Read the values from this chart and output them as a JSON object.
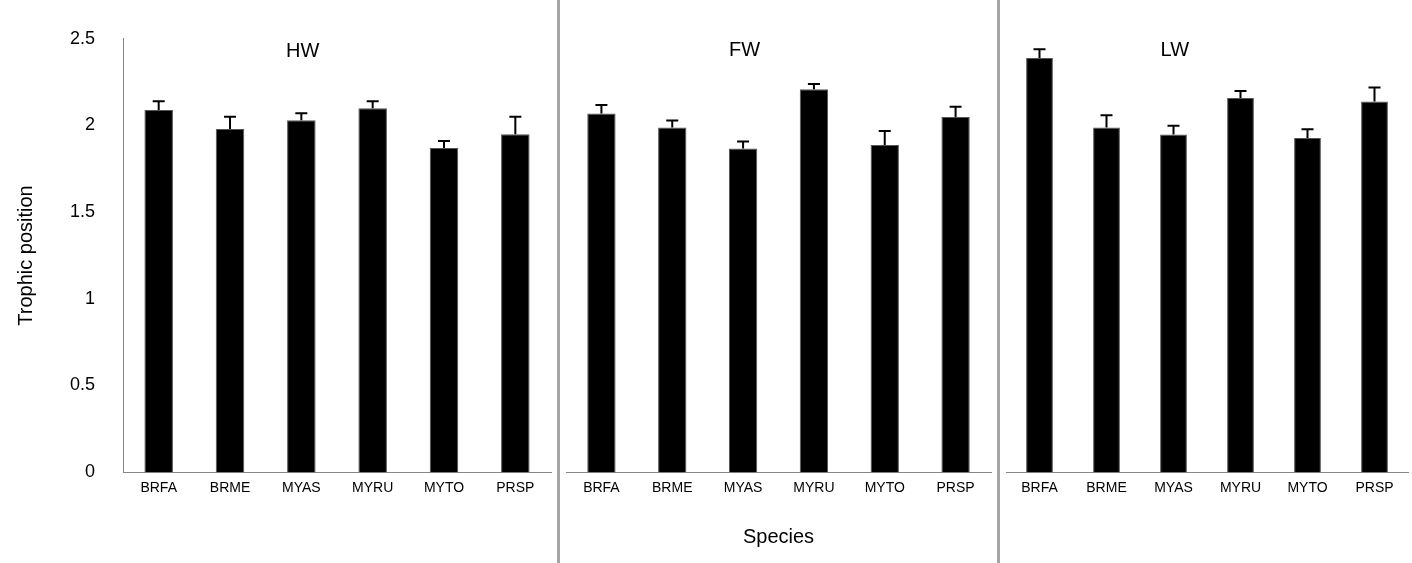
{
  "chart_data": [
    {
      "type": "bar",
      "title": "HW",
      "ylabel": "Trophic position",
      "categories": [
        "BRFA",
        "BRME",
        "MYAS",
        "MYRU",
        "MYTO",
        "PRSP"
      ],
      "values": [
        2.09,
        1.98,
        2.03,
        2.1,
        1.87,
        1.95
      ],
      "errors": [
        [
          2.09,
          2.14
        ],
        [
          1.98,
          2.05
        ],
        [
          2.03,
          2.07
        ],
        [
          2.1,
          2.14
        ],
        [
          1.87,
          1.91
        ],
        [
          1.95,
          2.05
        ]
      ],
      "color": "#000000",
      "ylim": [
        0,
        2.5
      ],
      "yticks": [
        0,
        0.5,
        1,
        1.5,
        2,
        2.5
      ],
      "grid": false,
      "legend": false
    },
    {
      "type": "bar",
      "title": "FW",
      "xlabel": "Species",
      "categories": [
        "BRFA",
        "BRME",
        "MYAS",
        "MYRU",
        "MYTO",
        "PRSP"
      ],
      "values": [
        2.06,
        1.98,
        1.86,
        2.2,
        1.88,
        2.04
      ],
      "errors": [
        [
          2.06,
          2.11
        ],
        [
          1.98,
          2.02
        ],
        [
          1.86,
          1.9
        ],
        [
          2.2,
          2.23
        ],
        [
          1.88,
          1.96
        ],
        [
          2.04,
          2.1
        ]
      ],
      "color": "#000000",
      "ylim": [
        0,
        2.5
      ],
      "yticks": [
        0,
        0.5,
        1,
        1.5,
        2,
        2.5
      ],
      "tick_labels": "x",
      "grid": false,
      "legend": false
    },
    {
      "type": "bar",
      "title": "LW",
      "categories": [
        "BRFA",
        "BRME",
        "MYAS",
        "MYRU",
        "MYTO",
        "PRSP"
      ],
      "values": [
        2.38,
        1.98,
        1.94,
        2.15,
        1.92,
        2.13
      ],
      "errors": [
        [
          2.38,
          2.43
        ],
        [
          1.98,
          2.05
        ],
        [
          1.94,
          1.99
        ],
        [
          2.15,
          2.19
        ],
        [
          1.92,
          1.97
        ],
        [
          2.13,
          2.21
        ]
      ],
      "color": "#000000",
      "ylim": [
        0,
        2.5
      ],
      "yticks": [
        0,
        0.5,
        1,
        1.5,
        2,
        2.5
      ],
      "tick_labels": "x",
      "grid": false,
      "legend": false
    }
  ]
}
